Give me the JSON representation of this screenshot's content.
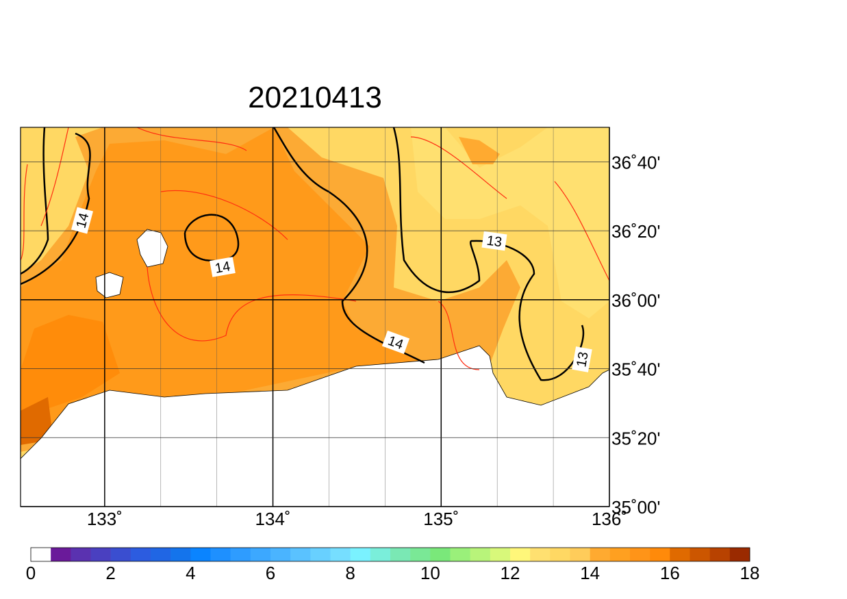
{
  "map": {
    "title": "20210413",
    "xlim": [
      132.5,
      136
    ],
    "ylim": [
      35,
      36.8333
    ],
    "xticks": [
      {
        "value": 133,
        "label": "133˚"
      },
      {
        "value": 134,
        "label": "134˚"
      },
      {
        "value": 135,
        "label": "135˚"
      },
      {
        "value": 136,
        "label": "136˚"
      }
    ],
    "xminor": [
      133.3333,
      133.6667,
      134.3333,
      134.6667,
      135.3333,
      135.6667
    ],
    "yticks": [
      {
        "value": 35,
        "label": "35˚00'"
      },
      {
        "value": 35.3333,
        "label": "35˚20'"
      },
      {
        "value": 35.6667,
        "label": "35˚40'"
      },
      {
        "value": 36,
        "label": "36˚00'"
      },
      {
        "value": 36.3333,
        "label": "36˚20'"
      },
      {
        "value": 36.6667,
        "label": "36˚40'"
      }
    ],
    "contour_labels": [
      14,
      14,
      13,
      14,
      13
    ],
    "colorbar": {
      "range": [
        0,
        18
      ],
      "ticks": [
        0,
        2,
        4,
        6,
        8,
        10,
        12,
        14,
        16,
        18
      ],
      "colors": [
        "#ffffff",
        "#6a1a9a",
        "#5a32b0",
        "#4a40c0",
        "#3a4ed0",
        "#2c5ce0",
        "#2066e4",
        "#1474ec",
        "#0a84ff",
        "#1e90ff",
        "#2e9cff",
        "#3ca8ff",
        "#4ab4ff",
        "#5ac2ff",
        "#68d0ff",
        "#76deff",
        "#7af2ff",
        "#7aeeda",
        "#7ae8b4",
        "#7ae896",
        "#7ae87a",
        "#9af07a",
        "#b8f47a",
        "#d8f87a",
        "#fff77a",
        "#ffe070",
        "#ffd863",
        "#ffcc5a",
        "#ffaa30",
        "#ffa020",
        "#ff9418",
        "#ff8a0a",
        "#e06a00",
        "#cc5600",
        "#b84200",
        "#9a2a00"
      ]
    }
  }
}
